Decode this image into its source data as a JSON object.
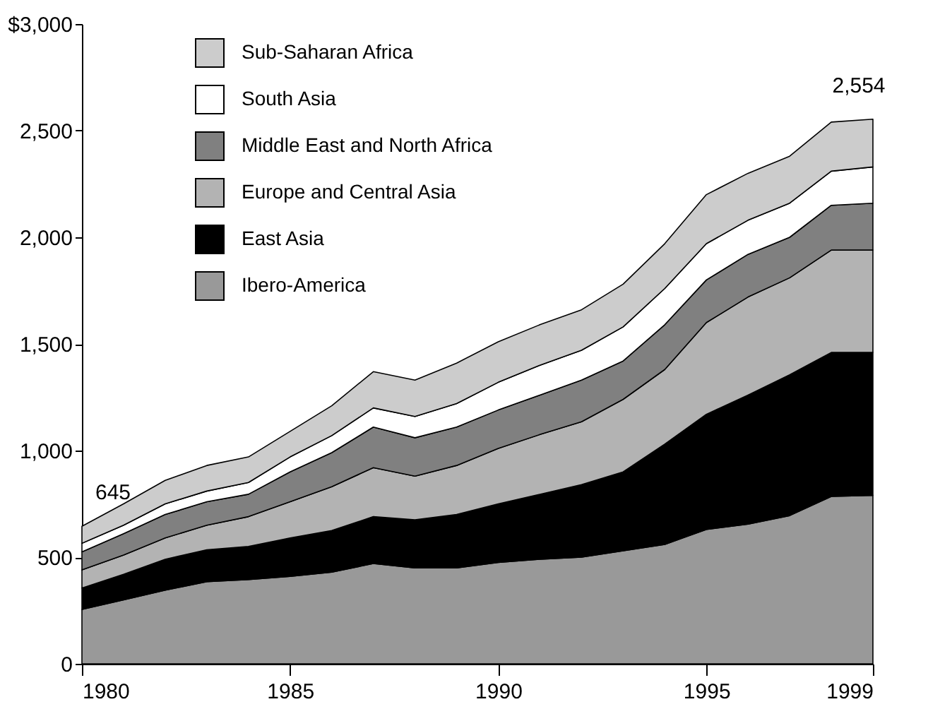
{
  "chart_data": {
    "type": "area",
    "stacked": true,
    "x": [
      1980,
      1981,
      1982,
      1983,
      1984,
      1985,
      1986,
      1987,
      1988,
      1989,
      1990,
      1991,
      1992,
      1993,
      1994,
      1995,
      1996,
      1997,
      1998,
      1999
    ],
    "series": [
      {
        "name": "Ibero-America",
        "color": "#999999",
        "values": [
          255,
          300,
          345,
          385,
          395,
          410,
          430,
          470,
          450,
          450,
          475,
          490,
          500,
          530,
          560,
          630,
          655,
          695,
          785,
          790
        ]
      },
      {
        "name": "East Asia",
        "color": "#000000",
        "values": [
          100,
          120,
          145,
          150,
          155,
          180,
          195,
          220,
          225,
          250,
          275,
          305,
          340,
          370,
          470,
          540,
          605,
          660,
          675,
          670
        ]
      },
      {
        "name": "Europe and Central Asia",
        "color": "#b3b3b3",
        "values": [
          85,
          90,
          100,
          115,
          140,
          170,
          205,
          230,
          205,
          230,
          260,
          280,
          295,
          340,
          350,
          430,
          460,
          455,
          480,
          480
        ]
      },
      {
        "name": "Middle East and North Africa",
        "color": "#808080",
        "values": [
          85,
          100,
          110,
          110,
          105,
          140,
          160,
          190,
          180,
          180,
          180,
          185,
          195,
          180,
          210,
          200,
          200,
          190,
          210,
          220
        ]
      },
      {
        "name": "South Asia",
        "color": "#ffffff",
        "values": [
          40,
          40,
          50,
          50,
          55,
          70,
          80,
          90,
          100,
          110,
          130,
          140,
          140,
          160,
          170,
          170,
          160,
          160,
          160,
          170
        ]
      },
      {
        "name": "Sub-Saharan Africa",
        "color": "#cccccc",
        "values": [
          80,
          100,
          110,
          120,
          120,
          120,
          140,
          170,
          170,
          190,
          190,
          190,
          190,
          200,
          210,
          230,
          220,
          220,
          230,
          224
        ]
      }
    ],
    "xlim": [
      1980,
      1999
    ],
    "xticks": [
      1980,
      1985,
      1990,
      1995,
      1999
    ],
    "ylim": [
      0,
      3000
    ],
    "yticks": [
      0,
      500,
      {
        "value": 1000,
        "label": "1,000"
      },
      {
        "value": 1500,
        "label": "1,500"
      },
      {
        "value": 2000,
        "label": "2,000"
      },
      {
        "value": 2500,
        "label": "2,500"
      },
      {
        "value": 3000,
        "label": "$3,000"
      }
    ],
    "annotations": [
      {
        "text": "645",
        "x": 1980,
        "y": 645
      },
      {
        "text": "2,554",
        "x": 1999,
        "y": 2554
      }
    ],
    "legend": "top left",
    "grid": false
  }
}
